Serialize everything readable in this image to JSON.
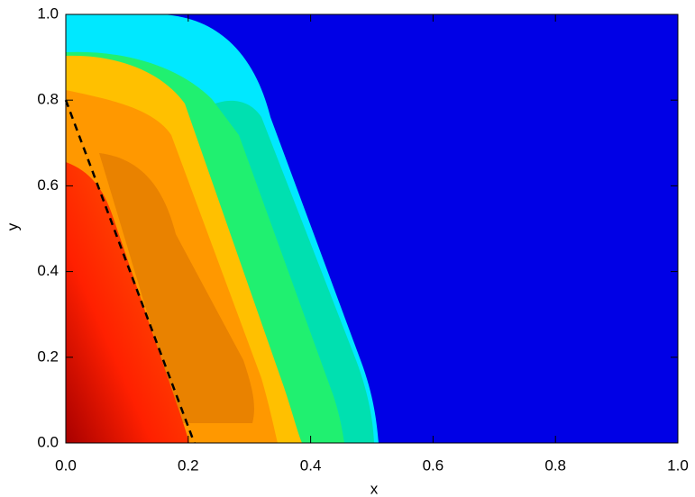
{
  "chart_data": {
    "type": "line",
    "x_label": "x",
    "y_label": "y",
    "x": [
      0,
      0.21
    ],
    "series": [
      {
        "color": "#000000",
        "dashed": true,
        "values": [
          0.8,
          0
        ]
      }
    ],
    "xlim": [
      0,
      1
    ],
    "ylim": [
      0,
      1
    ],
    "xticks": [
      {
        "value": 0,
        "label": "0.0"
      },
      0.2,
      0.4,
      0.6,
      0.8,
      {
        "value": 1,
        "label": "1.0"
      }
    ],
    "yticks": [
      {
        "value": 0,
        "label": "0.0"
      },
      0.2,
      0.4,
      0.6,
      0.8,
      {
        "value": 1,
        "label": "1.0"
      }
    ]
  }
}
